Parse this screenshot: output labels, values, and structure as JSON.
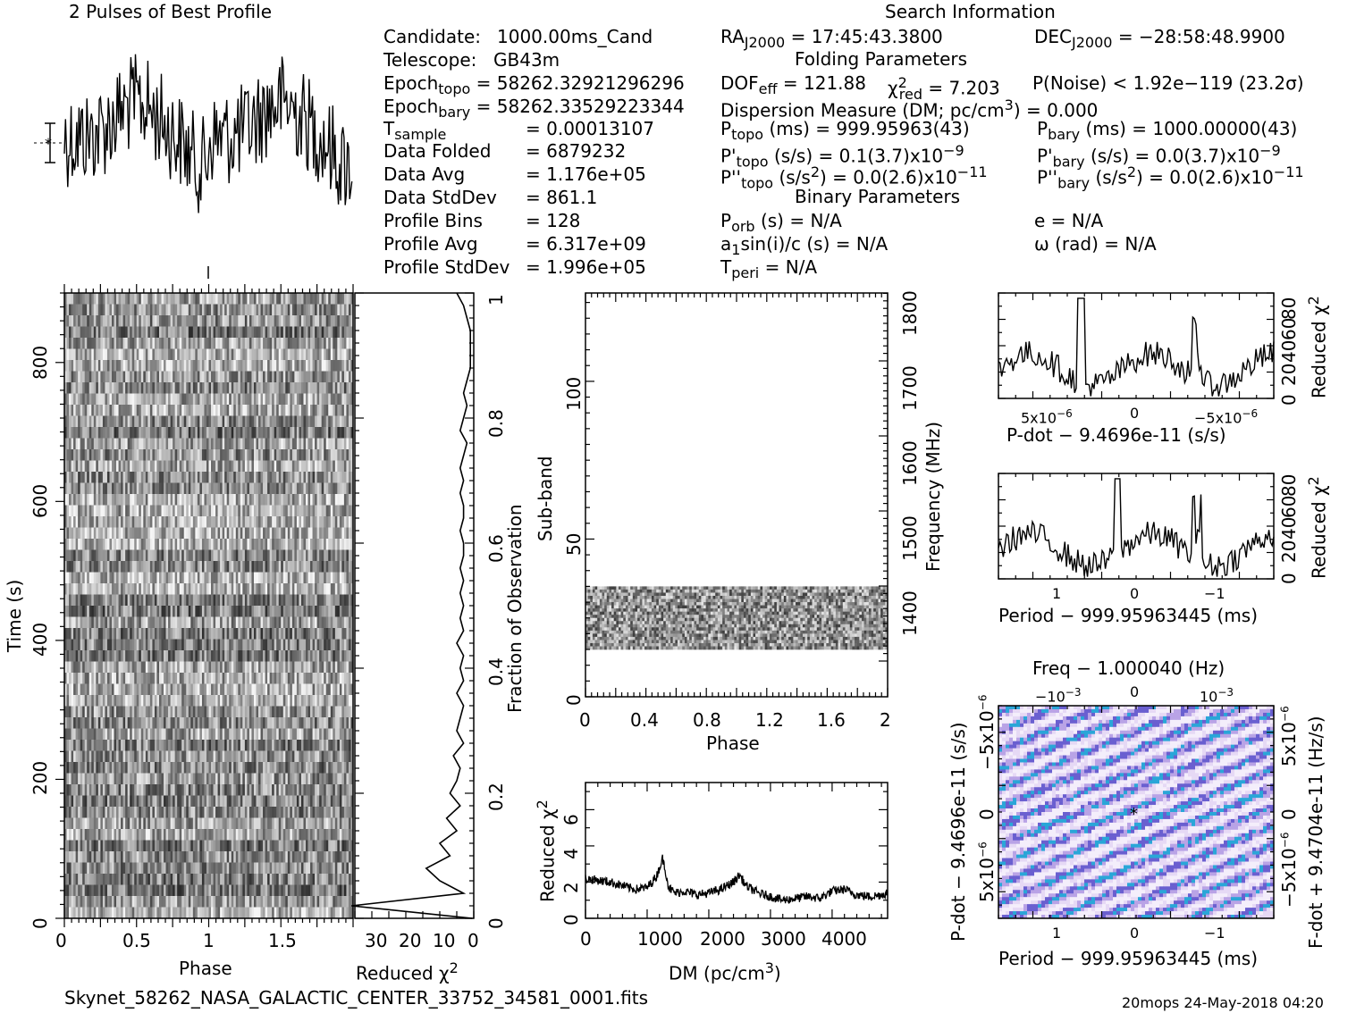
{
  "header": {
    "left_title": "2 Pulses of Best Profile",
    "search_title": "Search Information",
    "folding_title": "Folding Parameters",
    "binary_title": "Binary Parameters",
    "filename": "Skynet_58262_NASA_GALACTIC_CENTER_33752_34581_0001.fits",
    "footer_right": "20mops 24-May-2018 04:20"
  },
  "info_left": [
    {
      "label": "Candidate:",
      "value": "1000.00ms_Cand"
    },
    {
      "label": "Telescope:",
      "value": "GB43m"
    },
    {
      "label": "Epoch",
      "sub": "topo",
      "value": "= 58262.32921296296"
    },
    {
      "label": "Epoch",
      "sub": "bary",
      "value": "= 58262.33529223344"
    },
    {
      "label": "T",
      "sub": "sample",
      "value": "=   0.00013107"
    },
    {
      "label": "Data Folded",
      "value": "=   6879232"
    },
    {
      "label": "Data Avg",
      "value": "=   1.176e+05"
    },
    {
      "label": "Data StdDev",
      "value": "=   861.1"
    },
    {
      "label": "Profile Bins",
      "value": "=   128"
    },
    {
      "label": "Profile Avg",
      "value": "=   6.317e+09"
    },
    {
      "label": "Profile StdDev",
      "value": "=   1.996e+05"
    }
  ],
  "search": {
    "ra": "RA",
    "ra_sub": "J2000",
    "ra_value": "= 17:45:43.3800",
    "dec": "DEC",
    "dec_sub": "J2000",
    "dec_value": "= −28:58:48.9900",
    "dof": "DOF",
    "dof_sub": "eff",
    "dof_value": "= 121.88",
    "chi": "χ",
    "chi_sup": "2",
    "chi_sub": "red",
    "chi_value": "= 7.203",
    "pnoise": "P(Noise) < 1.92e−119   (23.2σ)",
    "dm": "Dispersion Measure (DM; pc/cm",
    "dm_sup": "3",
    "dm_value": ") = 0.000",
    "ptopo": "P",
    "ptopo_sub": "topo",
    "ptopo_value": "(ms) =  999.95963(43)",
    "pbary": "P",
    "pbary_sub": "bary",
    "pbary_value": "(ms) =  1000.00000(43)",
    "pdtopo": "P'",
    "pdtopo_sub": "topo",
    "pdtopo_value": "(s/s) =  0.1(3.7)x10",
    "pdtopo_exp": "−9",
    "pdbary": "P'",
    "pdbary_sub": "bary",
    "pdbary_value": "(s/s) = 0.0(3.7)x10",
    "pdbary_exp": "−9",
    "pddtopo": "P''",
    "pddtopo_sub": "topo",
    "pddtopo_value": "(s/s",
    "pddtopo_sup": "2",
    "pddtopo_value2": ") = 0.0(2.6)x10",
    "pddtopo_exp": "−11",
    "pddbary": "P''",
    "pddbary_sub": "bary",
    "pddbary_value": "(s/s",
    "pddbary_sup": "2",
    "pddbary_value2": ") = 0.0(2.6)x10",
    "pddbary_exp": "−11",
    "porb": "P",
    "porb_sub": "orb",
    "porb_value": "(s) = N/A",
    "ecc": "e = N/A",
    "asini": "a",
    "asini_sub": "1",
    "asini_value": "sin(i)/c (s) = N/A",
    "omega": "ω (rad) = N/A",
    "tperi": "T",
    "tperi_sub": "peri",
    "tperi_value": "= N/A"
  },
  "chart_data": [
    {
      "type": "line",
      "title": "2 Pulses of Best Profile",
      "x": "phase 0-2",
      "description_values": "noisy profile, two pulses"
    },
    {
      "type": "heatmap",
      "name": "time-phase",
      "xlabel": "Phase",
      "ylabel": "Time (s)",
      "xticks": [
        "0",
        "0.5",
        "1",
        "1.5"
      ],
      "yticks": [
        "0",
        "200",
        "400",
        "600",
        "800"
      ],
      "xlim": [
        0,
        2
      ],
      "ylim": [
        0,
        900
      ]
    },
    {
      "type": "line",
      "name": "reduced-chi2-vs-fraction",
      "xlabel": "Reduced χ",
      "xlabel_sup": "2",
      "ylabel": "Fraction of Observation",
      "xticks": [
        "30",
        "20",
        "10",
        "0"
      ],
      "yticks": [
        "0",
        "0.2",
        "0.4",
        "0.6",
        "0.8",
        "1"
      ],
      "y": [
        0,
        0.02,
        0.04,
        0.06,
        0.08,
        0.1,
        0.12,
        0.14,
        0.16,
        0.18,
        0.2,
        0.22,
        0.24,
        0.26,
        0.28,
        0.3,
        0.32,
        0.34,
        0.36,
        0.38,
        0.4,
        0.42,
        0.44,
        0.46,
        0.48,
        0.5,
        0.52,
        0.54,
        0.56,
        0.58,
        0.6,
        0.62,
        0.64,
        0.66,
        0.68,
        0.7,
        0.72,
        0.74,
        0.76,
        0.78,
        0.8,
        0.82,
        0.84,
        0.86,
        0.88,
        0.9,
        0.92,
        0.94,
        0.96,
        0.98,
        1.0
      ],
      "values": [
        0.5,
        36,
        3,
        10,
        14,
        7,
        10,
        5,
        8,
        4,
        7,
        5,
        4,
        6,
        3,
        5,
        4,
        3,
        5,
        3,
        4,
        3,
        5,
        3,
        4,
        3,
        4,
        3,
        4,
        3,
        3,
        4,
        3,
        3,
        4,
        3,
        4,
        3,
        2,
        4,
        3,
        2,
        3,
        2,
        1,
        1,
        1,
        1,
        2,
        3,
        5
      ]
    },
    {
      "type": "heatmap",
      "name": "subband-phase",
      "xlabel": "Phase",
      "ylabel": "Sub-band",
      "ylabel_right": "Frequency (MHz)",
      "xticks": [
        "0",
        "0.4",
        "0.8",
        "1.2",
        "1.6",
        "2"
      ],
      "yticks": [
        "0",
        "50",
        "100"
      ],
      "yticks_right": [
        "1400",
        "1500",
        "1600",
        "1700",
        "1800"
      ],
      "xlim": [
        0,
        2
      ],
      "ylim": [
        0,
        128
      ],
      "filled_band": [
        15,
        35
      ]
    },
    {
      "type": "line",
      "name": "reduced-chi2-vs-dm",
      "xlabel": "DM (pc/cm",
      "xlabel_sup": "3",
      "xlabel_end": ")",
      "ylabel": "Reduced χ",
      "ylabel_sup": "2",
      "xticks": [
        "0",
        "1000",
        "2000",
        "3000",
        "4000"
      ],
      "yticks": [
        "0",
        "2",
        "4",
        "6"
      ],
      "xlim": [
        0,
        4900
      ],
      "ylim": [
        0,
        7.5
      ],
      "x": [
        0,
        200,
        400,
        600,
        800,
        1000,
        1150,
        1250,
        1300,
        1350,
        1450,
        1600,
        1800,
        2000,
        2200,
        2400,
        2500,
        2600,
        2800,
        3000,
        3200,
        3400,
        3600,
        3800,
        4000,
        4200,
        4400,
        4600,
        4800,
        4900
      ],
      "values": [
        2.2,
        2.1,
        2.0,
        1.8,
        1.6,
        1.7,
        2.3,
        3.3,
        2.6,
        1.7,
        1.4,
        1.5,
        1.3,
        1.4,
        1.6,
        2.0,
        2.4,
        1.8,
        1.4,
        1.2,
        1.0,
        1.1,
        1.2,
        1.1,
        1.5,
        1.6,
        1.3,
        1.2,
        1.3,
        1.4
      ]
    },
    {
      "type": "line",
      "name": "reduced-chi2-vs-pdot",
      "xlabel": "P-dot − 9.4696e-11 (s/s)",
      "ylabel": "Reduced χ",
      "ylabel_sup": "2",
      "xticks": [
        "5x10",
        "0",
        "−5x10"
      ],
      "xtick_exp": "−6",
      "yticks": [
        "0",
        "20",
        "40",
        "60",
        "80"
      ]
    },
    {
      "type": "line",
      "name": "reduced-chi2-vs-period",
      "xlabel": "Period − 999.95963445 (ms)",
      "ylabel": "Reduced χ",
      "ylabel_sup": "2",
      "xticks": [
        "1",
        "0",
        "−1"
      ],
      "yticks": [
        "0",
        "20",
        "40",
        "60",
        "80"
      ]
    },
    {
      "type": "heatmap",
      "name": "period-pdot",
      "title": "Freq − 1.000040 (Hz)",
      "xlabel": "Period − 999.95963445 (ms)",
      "ylabel": "P-dot − 9.4696e-11 (s/s)",
      "ylabel_right": "F-dot + 9.4704e-11 (Hz/s)",
      "xticks": [
        "1",
        "0",
        "−1"
      ],
      "xticks_top": [
        "−10",
        "0",
        "10"
      ],
      "xticks_top_exp": "−3",
      "yticks": [
        "5x10",
        "0",
        "−5x10"
      ],
      "ytick_exp": "−6",
      "yticks_right": [
        "−5x10",
        "0",
        "5x10"
      ],
      "ytick_right_exp": "−6"
    }
  ]
}
